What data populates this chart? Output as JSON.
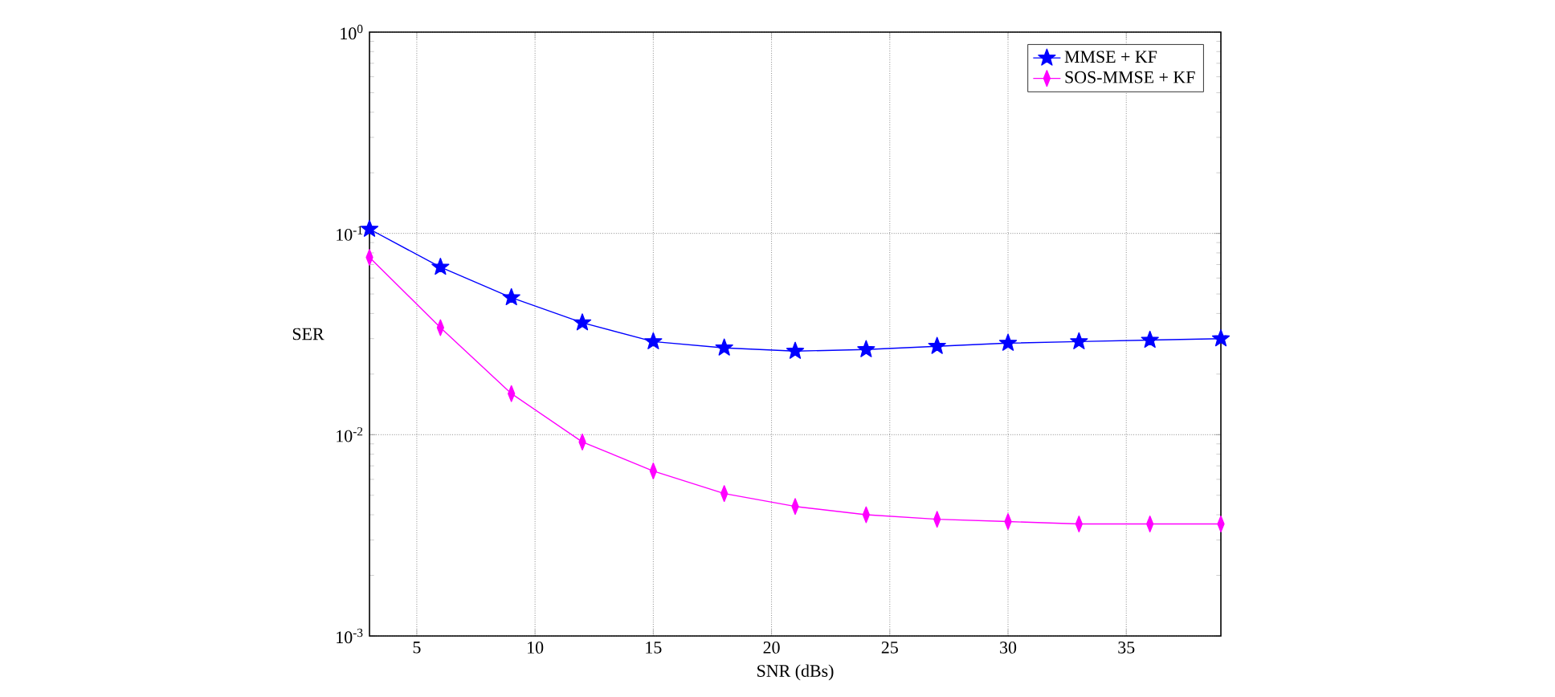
{
  "chart_data": {
    "type": "line",
    "xlabel": "SNR (dBs)",
    "ylabel": "SER",
    "log": "y",
    "x": [
      3,
      6,
      9,
      12,
      15,
      18,
      21,
      24,
      27,
      30,
      33,
      36,
      39
    ],
    "series": [
      {
        "name": "MMSE + KF",
        "color": "#0000ff",
        "marker": "star",
        "values": [
          0.105,
          0.068,
          0.048,
          0.036,
          0.029,
          0.027,
          0.026,
          0.0265,
          0.0275,
          0.0285,
          0.029,
          0.0295,
          0.03
        ]
      },
      {
        "name": "SOS-MMSE + KF",
        "color": "#ff00ff",
        "marker": "diamond",
        "values": [
          0.076,
          0.034,
          0.016,
          0.0092,
          0.0066,
          0.0051,
          0.0044,
          0.004,
          0.0038,
          0.0037,
          0.0036,
          0.0036,
          0.0036
        ]
      }
    ],
    "xlim": [
      3,
      39
    ],
    "xticks": [
      5,
      10,
      15,
      20,
      25,
      30,
      35
    ],
    "ylim": [
      0.001,
      1
    ],
    "yticks": [
      {
        "value": 0.001,
        "label": "10$^{-3}$"
      },
      {
        "value": 0.01,
        "label": "10$^{-2}$"
      },
      {
        "value": 0.1,
        "label": "10$^{-1}$"
      },
      {
        "value": 1,
        "label": "10$^{0}$"
      }
    ],
    "grid": true,
    "legend": "top right",
    "line_style": "solid"
  }
}
